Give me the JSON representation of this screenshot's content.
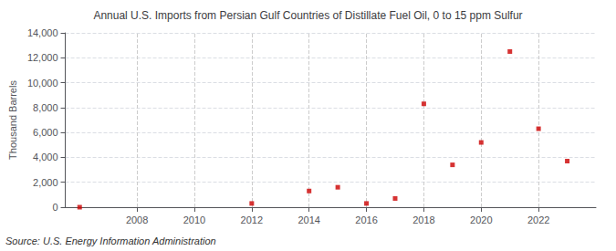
{
  "chart_data": {
    "type": "scatter",
    "title": "Annual U.S. Imports from Persian Gulf Countries of Distillate Fuel Oil, 0 to 15 ppm Sulfur",
    "ylabel": "Thousand Barrels",
    "annotation": "Source: U.S. Energy Information Administration",
    "x": [
      2006,
      2012,
      2014,
      2015,
      2016,
      2017,
      2018,
      2019,
      2020,
      2021,
      2022,
      2023
    ],
    "values": [
      0,
      300,
      1300,
      1600,
      300,
      700,
      8300,
      3400,
      5200,
      12500,
      6300,
      3700
    ],
    "color": "#cc0000",
    "marker": "square",
    "xlim": [
      2005.5,
      2024.0
    ],
    "xticks": [
      2008,
      2010,
      2012,
      2014,
      2016,
      2018,
      2020,
      2022
    ],
    "ylim": [
      0,
      14000
    ],
    "yticks": [
      0,
      {
        "value": 2000,
        "label": "2,000"
      },
      {
        "value": 4000,
        "label": "4,000"
      },
      {
        "value": 6000,
        "label": "6,000"
      },
      {
        "value": 8000,
        "label": "8,000"
      },
      {
        "value": 10000,
        "label": "10,000"
      },
      {
        "value": 12000,
        "label": "12,000"
      },
      {
        "value": 14000,
        "label": "14,000"
      }
    ],
    "grid": true
  }
}
